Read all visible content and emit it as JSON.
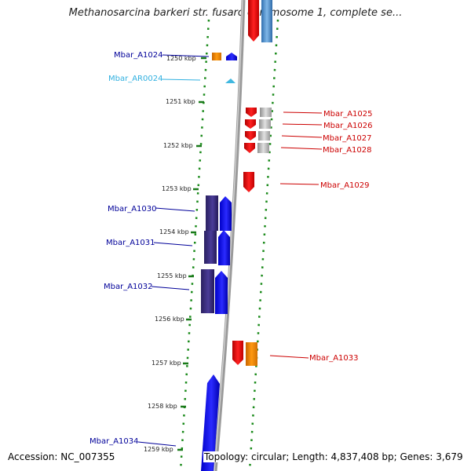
{
  "title": "Methanosarcina barkeri str. fusaro chromosome 1, complete se...",
  "footer": {
    "accession": "Accession: NC_007355",
    "topology": "Topology: circular; Length: 4,837,408 bp; Genes: 3,679"
  },
  "positions": [
    "1250 kbp",
    "1251 kbp",
    "1252 kbp",
    "1253 kbp",
    "1254 kbp",
    "1255 kbp",
    "1256 kbp",
    "1257 kbp",
    "1258 kbp",
    "1259 kbp"
  ],
  "colors": {
    "forward_gene": "#1010f0",
    "forward_gene_dark": "#3a2e80",
    "reverse_gene": "#e01010",
    "rna": "#40b8e0",
    "orange": "#f08800",
    "gray": "#b8b8b8",
    "steelblue": "#4a88c0",
    "label_forward": "#000099",
    "label_reverse": "#cc0000",
    "label_rna": "#30b0e0",
    "dots": "#1a7a1a",
    "backbone": "#888888"
  },
  "genes": [
    {
      "name": "Mbar_A1024",
      "strand": "forward"
    },
    {
      "name": "Mbar_AR0024",
      "strand": "rna"
    },
    {
      "name": "Mbar_A1025",
      "strand": "reverse"
    },
    {
      "name": "Mbar_A1026",
      "strand": "reverse"
    },
    {
      "name": "Mbar_A1027",
      "strand": "reverse"
    },
    {
      "name": "Mbar_A1028",
      "strand": "reverse"
    },
    {
      "name": "Mbar_A1029",
      "strand": "reverse"
    },
    {
      "name": "Mbar_A1030",
      "strand": "forward"
    },
    {
      "name": "Mbar_A1031",
      "strand": "forward"
    },
    {
      "name": "Mbar_A1032",
      "strand": "forward"
    },
    {
      "name": "Mbar_A1033",
      "strand": "reverse"
    },
    {
      "name": "Mbar_A1034",
      "strand": "forward"
    }
  ]
}
